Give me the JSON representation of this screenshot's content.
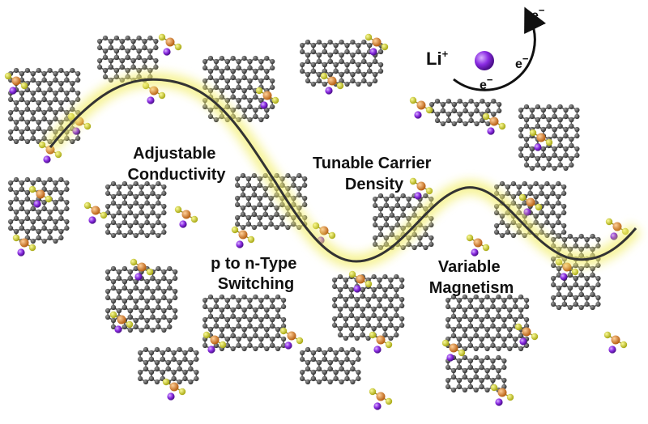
{
  "features": [
    {
      "id": "conductivity",
      "lines": [
        "Adjustable",
        "Conductivity"
      ]
    },
    {
      "id": "carrier",
      "lines": [
        "Tunable Carrier",
        "Density"
      ]
    },
    {
      "id": "switching",
      "lines": [
        "p to n-Type",
        "Switching"
      ]
    },
    {
      "id": "magnetism",
      "lines": [
        "Variable",
        "Magnetism"
      ]
    }
  ],
  "ion": {
    "symbol": "Li",
    "charge": "+"
  },
  "electron": {
    "symbol": "e",
    "charge": "−"
  },
  "colors": {
    "carbon": "#4a4a4a",
    "bond": "#5b5b5b",
    "sulfur": "#c8c81e",
    "copper": "#d9822b",
    "lithium": "#8a2be2",
    "wave": "#333333",
    "glow": "#f3ee6a"
  }
}
